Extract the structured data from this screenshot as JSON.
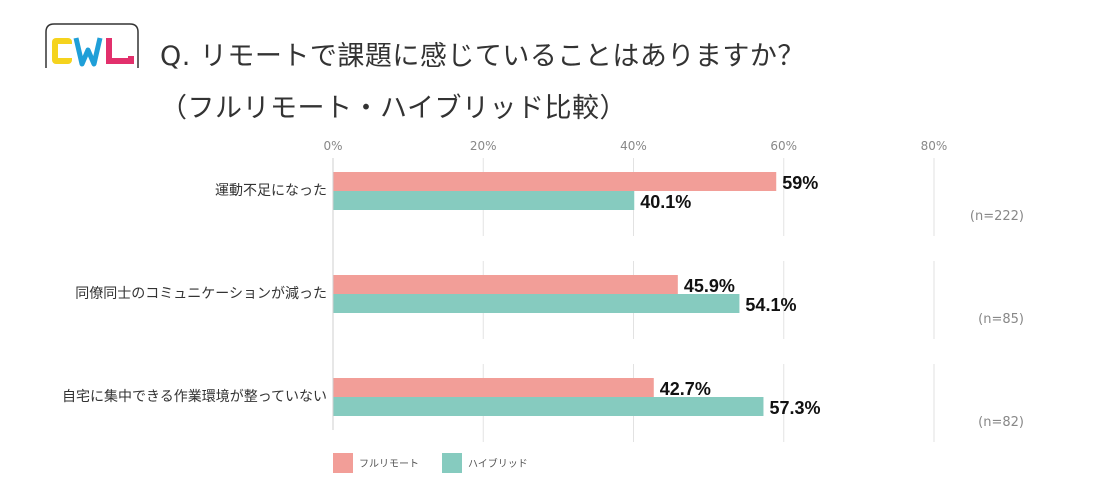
{
  "logo": {
    "text": "CWL"
  },
  "title": {
    "line1": "Q. リモートで課題に感じていることはありますか？",
    "line2": "（フルリモート・ハイブリッド比較）"
  },
  "colors": {
    "full_remote": "#f29e98",
    "hybrid": "#86cbbf",
    "grid": "#e2e2e2"
  },
  "chart_data": {
    "type": "bar",
    "orientation": "horizontal",
    "categories": [
      "運動不足になった",
      "同僚同士のコミュニケーションが減った",
      "自宅に集中できる作業環境が整っていない"
    ],
    "series": [
      {
        "name": "フルリモート",
        "values": [
          59,
          45.9,
          42.7
        ],
        "labels": [
          "59%",
          "45.9%",
          "42.7%"
        ]
      },
      {
        "name": "ハイブリッド",
        "values": [
          40.1,
          54.1,
          57.3
        ],
        "labels": [
          "40.1%",
          "54.1%",
          "57.3%"
        ]
      }
    ],
    "sample_sizes": [
      "(n=222)",
      "(n=85)",
      "(n=82)"
    ],
    "xlim": [
      0,
      80
    ],
    "xticks": [
      0,
      20,
      40,
      60,
      80
    ],
    "xtick_labels": [
      "0%",
      "20%",
      "40%",
      "60%",
      "80%"
    ],
    "legend": [
      "フルリモート",
      "ハイブリッド"
    ],
    "legend_position": "bottom-left"
  }
}
